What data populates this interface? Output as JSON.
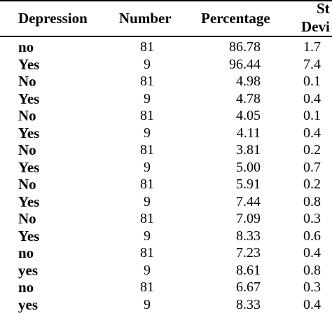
{
  "table": {
    "headers": {
      "depression": "Depression",
      "number": "Number",
      "percentage": "Percentage",
      "std_line1": "St",
      "std_line2": "Devi"
    },
    "rows": [
      {
        "depression": "no",
        "number": "81",
        "percentage": "86.78",
        "sd": "1.7"
      },
      {
        "depression": "Yes",
        "number": "9",
        "percentage": "96.44",
        "sd": "7.4"
      },
      {
        "depression": "No",
        "number": "81",
        "percentage": "4.98",
        "sd": "0.1"
      },
      {
        "depression": "Yes",
        "number": "9",
        "percentage": "4.78",
        "sd": "0.4"
      },
      {
        "depression": "No",
        "number": "81",
        "percentage": "4.05",
        "sd": "0.1"
      },
      {
        "depression": "Yes",
        "number": "9",
        "percentage": "4.11",
        "sd": "0.4"
      },
      {
        "depression": "No",
        "number": "81",
        "percentage": "3.81",
        "sd": "0.2"
      },
      {
        "depression": "Yes",
        "number": "9",
        "percentage": "5.00",
        "sd": "0.7"
      },
      {
        "depression": "No",
        "number": "81",
        "percentage": "5.91",
        "sd": "0.2"
      },
      {
        "depression": "Yes",
        "number": "9",
        "percentage": "7.44",
        "sd": "0.8"
      },
      {
        "depression": "No",
        "number": "81",
        "percentage": "7.09",
        "sd": "0.3"
      },
      {
        "depression": "Yes",
        "number": "9",
        "percentage": "8.33",
        "sd": "0.6"
      },
      {
        "depression": "no",
        "number": "81",
        "percentage": "7.23",
        "sd": "0.4"
      },
      {
        "depression": "yes",
        "number": "9",
        "percentage": "8.61",
        "sd": "0.8"
      },
      {
        "depression": "no",
        "number": "81",
        "percentage": "6.67",
        "sd": "0.3"
      },
      {
        "depression": "yes",
        "number": "9",
        "percentage": "8.33",
        "sd": "0.4"
      }
    ]
  }
}
